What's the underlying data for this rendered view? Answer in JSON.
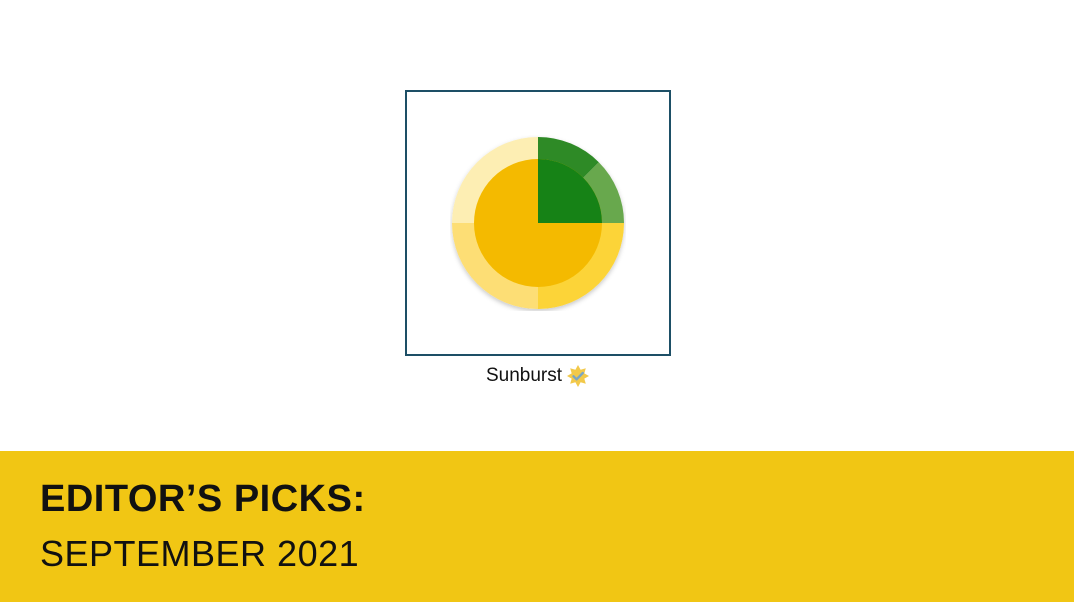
{
  "card": {
    "label": "Sunburst",
    "icon": "sunburst-chart-icon",
    "badge_icon": "verified-badge-icon"
  },
  "banner": {
    "title": "EDITOR’S PICKS:",
    "subtitle": "SEPTEMBER 2021"
  },
  "colors": {
    "accent_yellow": "#f1c614",
    "card_border": "#1d4f66",
    "green": "#158212"
  }
}
